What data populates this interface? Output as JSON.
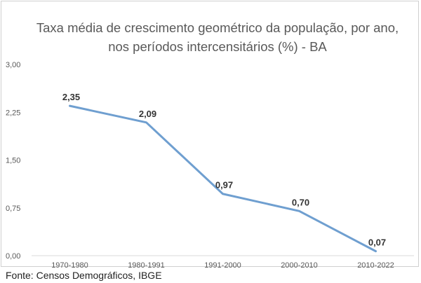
{
  "chart_data": {
    "type": "line",
    "title_lines": [
      "Taxa média de crescimento geométrico da população, por ano,",
      "nos períodos intercensitários (%) - BA"
    ],
    "categories": [
      "1970-1980",
      "1980-1991",
      "1991-2000",
      "2000-2010",
      "2010-2022"
    ],
    "values": [
      2.35,
      2.09,
      0.97,
      0.7,
      0.07
    ],
    "data_labels": [
      "2,35",
      "2,09",
      "0,97",
      "0,70",
      "0,07"
    ],
    "y_ticks": [
      {
        "value": 0,
        "label": "0,00"
      },
      {
        "value": 0.75,
        "label": "0,75"
      },
      {
        "value": 1.5,
        "label": "1,50"
      },
      {
        "value": 2.25,
        "label": "2,25"
      },
      {
        "value": 3,
        "label": "3,00"
      }
    ],
    "ylim": [
      0,
      3
    ],
    "grid": false,
    "legend": "none",
    "line_color": "#6f9fd0",
    "axis_color": "#d9d9d9"
  },
  "source": "Fonte: Censos Demográficos, IBGE"
}
